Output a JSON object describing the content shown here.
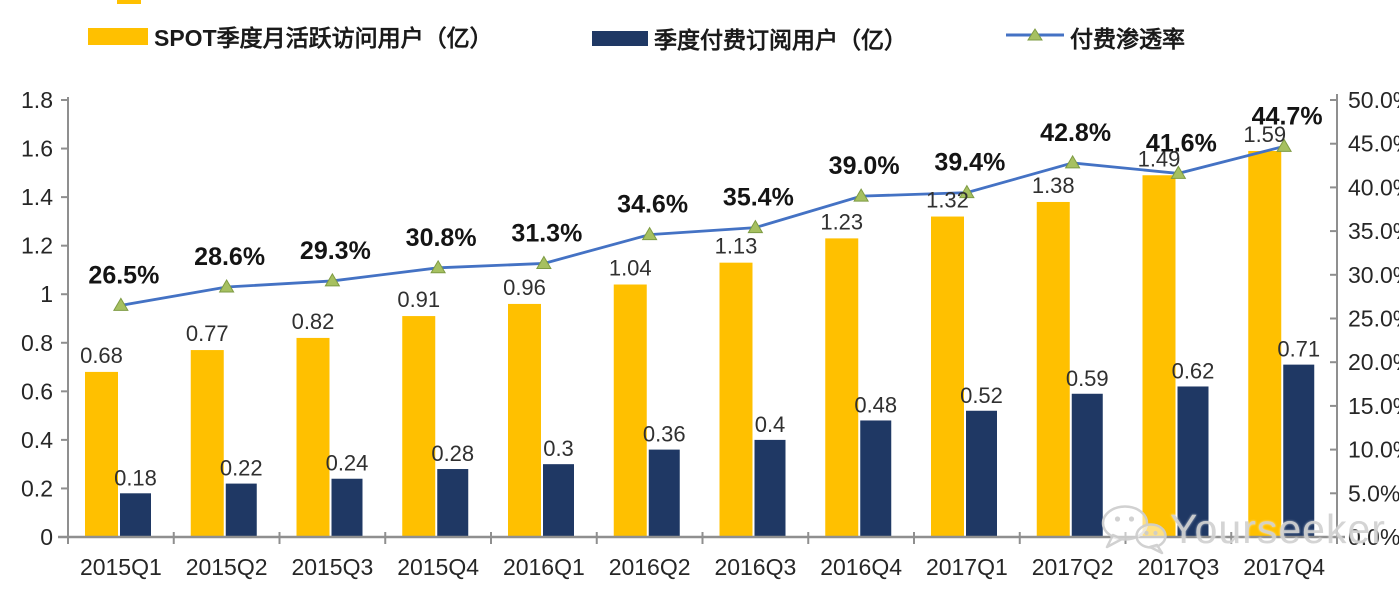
{
  "legend": {
    "items": [
      {
        "label": "SPOT季度月活跃访问用户（亿）",
        "swatch_color": "#FFC000",
        "type": "bar"
      },
      {
        "label": "季度付费订阅用户（亿）",
        "swatch_color": "#1F3864",
        "type": "bar"
      },
      {
        "label": "付费渗透率",
        "swatch_color": "#4472C4",
        "marker_color": "#A6C060",
        "type": "line"
      }
    ]
  },
  "watermark": {
    "text": "Yourseeker",
    "icon": "wechat-icon",
    "color": "#d2d2d2"
  },
  "chart_data": {
    "type": "combo-bar-line",
    "title": "",
    "categories": [
      "2015Q1",
      "2015Q2",
      "2015Q3",
      "2015Q4",
      "2016Q1",
      "2016Q2",
      "2016Q3",
      "2016Q4",
      "2017Q1",
      "2017Q2",
      "2017Q3",
      "2017Q4"
    ],
    "series": [
      {
        "name": "SPOT季度月活跃访问用户（亿）",
        "type": "bar",
        "axis": "left",
        "color": "#FFC000",
        "values": [
          0.68,
          0.77,
          0.82,
          0.91,
          0.96,
          1.04,
          1.13,
          1.23,
          1.32,
          1.38,
          1.49,
          1.59
        ],
        "labels": [
          "0.68",
          "0.77",
          "0.82",
          "0.91",
          "0.96",
          "1.04",
          "1.13",
          "1.23",
          "1.32",
          "1.38",
          "1.49",
          "1.59"
        ]
      },
      {
        "name": "季度付费订阅用户（亿）",
        "type": "bar",
        "axis": "left",
        "color": "#1F3864",
        "values": [
          0.18,
          0.22,
          0.24,
          0.28,
          0.3,
          0.36,
          0.4,
          0.48,
          0.52,
          0.59,
          0.62,
          0.71
        ],
        "labels": [
          "0.18",
          "0.22",
          "0.24",
          "0.28",
          "0.3",
          "0.36",
          "0.4",
          "0.48",
          "0.52",
          "0.59",
          "0.62",
          "0.71"
        ]
      },
      {
        "name": "付费渗透率",
        "type": "line",
        "axis": "right",
        "color": "#4472C4",
        "marker": "triangle",
        "marker_color": "#A6C060",
        "marker_edge_color": "#7E9B43",
        "values": [
          26.5,
          28.6,
          29.3,
          30.8,
          31.3,
          34.6,
          35.4,
          39.0,
          39.4,
          42.8,
          41.6,
          44.7
        ],
        "labels": [
          "26.5%",
          "28.6%",
          "29.3%",
          "30.8%",
          "31.3%",
          "34.6%",
          "35.4%",
          "39.0%",
          "39.4%",
          "42.8%",
          "41.6%",
          "44.7%"
        ]
      }
    ],
    "left_axis": {
      "min": 0,
      "max": 1.8,
      "step": 0.2,
      "labels": [
        "0",
        "0.2",
        "0.4",
        "0.6",
        "0.8",
        "1",
        "1.2",
        "1.4",
        "1.6",
        "1.8"
      ]
    },
    "right_axis": {
      "min": 0,
      "max": 50,
      "step": 5,
      "labels": [
        "0.0%",
        "5.0%",
        "10.0%",
        "15.0%",
        "20.0%",
        "25.0%",
        "30.0%",
        "35.0%",
        "40.0%",
        "45.0%",
        "50.0%"
      ]
    },
    "grid": false,
    "legend_position": "top"
  }
}
